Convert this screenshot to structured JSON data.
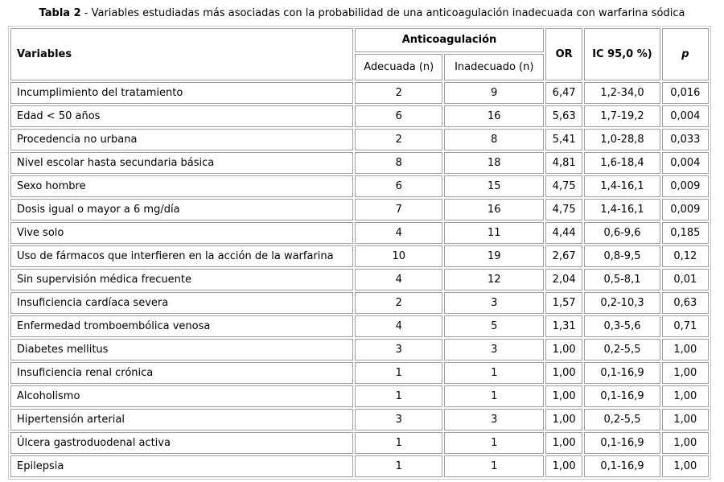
{
  "title": {
    "label": "Tabla 2",
    "rest": "- Variables estudiadas más asociadas con la probabilidad de una anticoagulación inadecuada con warfarina sódica"
  },
  "table": {
    "headers": {
      "variables": "Variables",
      "group": "Anticoagulación",
      "sub1": "Adecuada (n)",
      "sub2": "Inadecuado (n)",
      "or": "OR",
      "ic": "IC 95,0 %)",
      "p": "p"
    },
    "rows": [
      {
        "variable": "Incumplimiento del tratamiento",
        "adecuada": "2",
        "inadecuado": "9",
        "or": "6,47",
        "ic": "1,2-34,0",
        "p": "0,016"
      },
      {
        "variable": "Edad < 50 años",
        "adecuada": "6",
        "inadecuado": "16",
        "or": "5,63",
        "ic": "1,7-19,2",
        "p": "0,004"
      },
      {
        "variable": "Procedencia no urbana",
        "adecuada": "2",
        "inadecuado": "8",
        "or": "5,41",
        "ic": "1,0-28,8",
        "p": "0,033"
      },
      {
        "variable": "Nivel escolar hasta secundaria básica",
        "adecuada": "8",
        "inadecuado": "18",
        "or": "4,81",
        "ic": "1,6-18,4",
        "p": "0,004"
      },
      {
        "variable": "Sexo hombre",
        "adecuada": "6",
        "inadecuado": "15",
        "or": "4,75",
        "ic": "1,4-16,1",
        "p": "0,009"
      },
      {
        "variable": "Dosis igual o mayor a 6 mg/día",
        "adecuada": "7",
        "inadecuado": "16",
        "or": "4,75",
        "ic": "1,4-16,1",
        "p": "0,009"
      },
      {
        "variable": "Vive solo",
        "adecuada": "4",
        "inadecuado": "11",
        "or": "4,44",
        "ic": "0,6-9,6",
        "p": "0,185"
      },
      {
        "variable": "Uso de fármacos que interfieren en la acción de la warfarina",
        "adecuada": "10",
        "inadecuado": "19",
        "or": "2,67",
        "ic": "0,8-9,5",
        "p": "0,12"
      },
      {
        "variable": "Sin supervisión médica frecuente",
        "adecuada": "4",
        "inadecuado": "12",
        "or": "2,04",
        "ic": "0,5-8,1",
        "p": "0,01"
      },
      {
        "variable": "Insuficiencia cardíaca severa",
        "adecuada": "2",
        "inadecuado": "3",
        "or": "1,57",
        "ic": "0,2-10,3",
        "p": "0,63"
      },
      {
        "variable": "Enfermedad tromboembólica venosa",
        "adecuada": "4",
        "inadecuado": "5",
        "or": "1,31",
        "ic": "0,3-5,6",
        "p": "0,71"
      },
      {
        "variable": "Diabetes mellitus",
        "adecuada": "3",
        "inadecuado": "3",
        "or": "1,00",
        "ic": "0,2-5,5",
        "p": "1,00"
      },
      {
        "variable": "Insuficiencia renal crónica",
        "adecuada": "1",
        "inadecuado": "1",
        "or": "1,00",
        "ic": "0,1-16,9",
        "p": "1,00"
      },
      {
        "variable": "Alcoholismo",
        "adecuada": "1",
        "inadecuado": "1",
        "or": "1,00",
        "ic": "0,1-16,9",
        "p": "1,00"
      },
      {
        "variable": "Hipertensión arterial",
        "adecuada": "3",
        "inadecuado": "3",
        "or": "1,00",
        "ic": "0,2-5,5",
        "p": "1,00"
      },
      {
        "variable": "Úlcera gastroduodenal activa",
        "adecuada": "1",
        "inadecuado": "1",
        "or": "1,00",
        "ic": "0,1-16,9",
        "p": "1,00"
      },
      {
        "variable": "Epilepsia",
        "adecuada": "1",
        "inadecuado": "1",
        "or": "1,00",
        "ic": "0,1-16,9",
        "p": "1,00"
      }
    ]
  },
  "colors": {
    "cell_border": "#9e9e9e",
    "outer_border": "#c9c9c9",
    "text": "#000000",
    "background": "#ffffff"
  }
}
